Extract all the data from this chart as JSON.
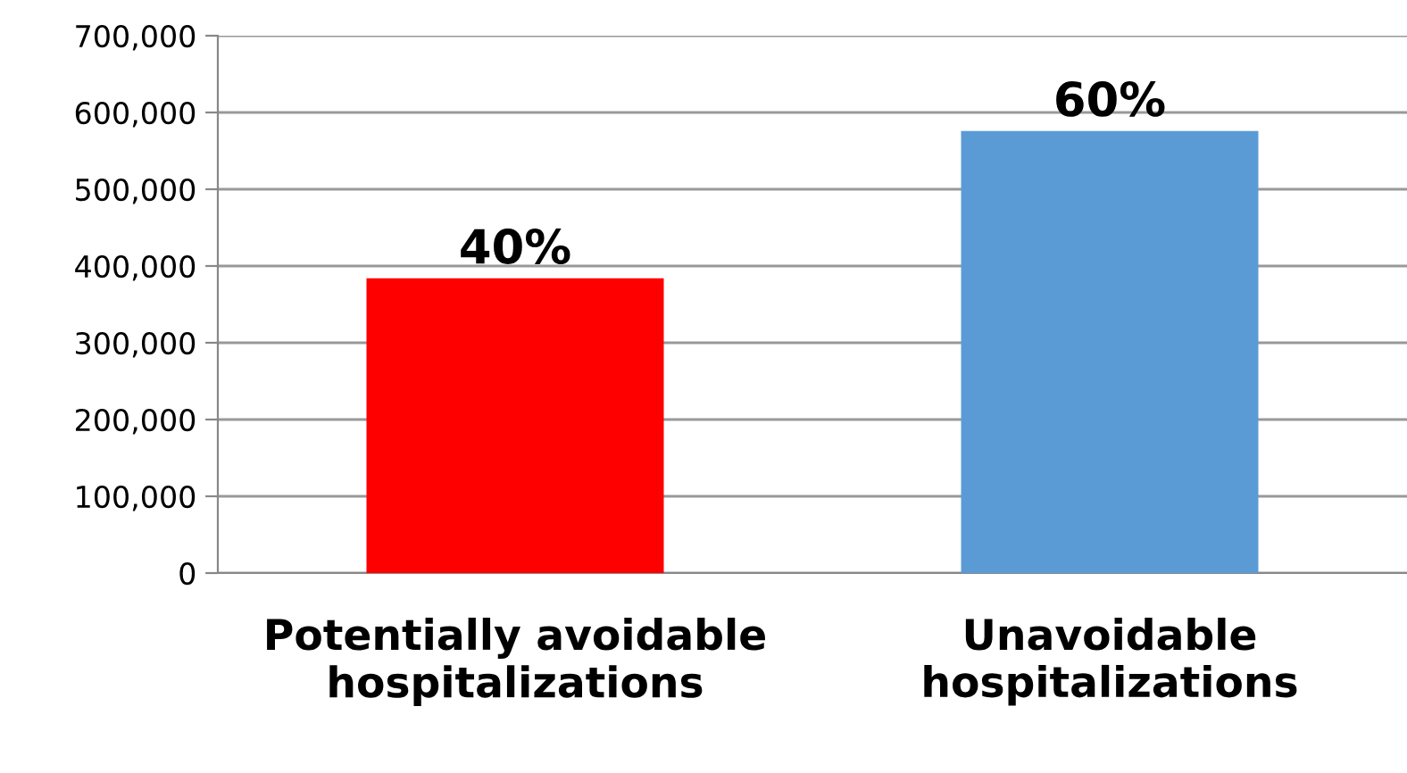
{
  "chart_data": {
    "type": "bar",
    "categories": [
      "Potentially avoidable\nhospitalizations",
      "Unavoidable\nhospitalizations"
    ],
    "values": [
      384000,
      576000
    ],
    "colors": [
      "#ff0000",
      "#5b9bd5"
    ],
    "annotations": [
      {
        "text": "40%",
        "x": "Potentially avoidable\nhospitalizations",
        "y": 384000
      },
      {
        "text": "60%",
        "x": "Unavoidable\nhospitalizations",
        "y": 576000
      }
    ],
    "ylim": [
      0,
      700000
    ],
    "yticks": [
      {
        "value": 0,
        "label": "0"
      },
      {
        "value": 100000,
        "label": "100,000"
      },
      {
        "value": 200000,
        "label": "200,000"
      },
      {
        "value": 300000,
        "label": "300,000"
      },
      {
        "value": 400000,
        "label": "400,000"
      },
      {
        "value": 500000,
        "label": "500,000"
      },
      {
        "value": 600000,
        "label": "600,000"
      },
      {
        "value": 700000,
        "label": "700,000"
      }
    ],
    "grid": "y",
    "legend": false
  }
}
